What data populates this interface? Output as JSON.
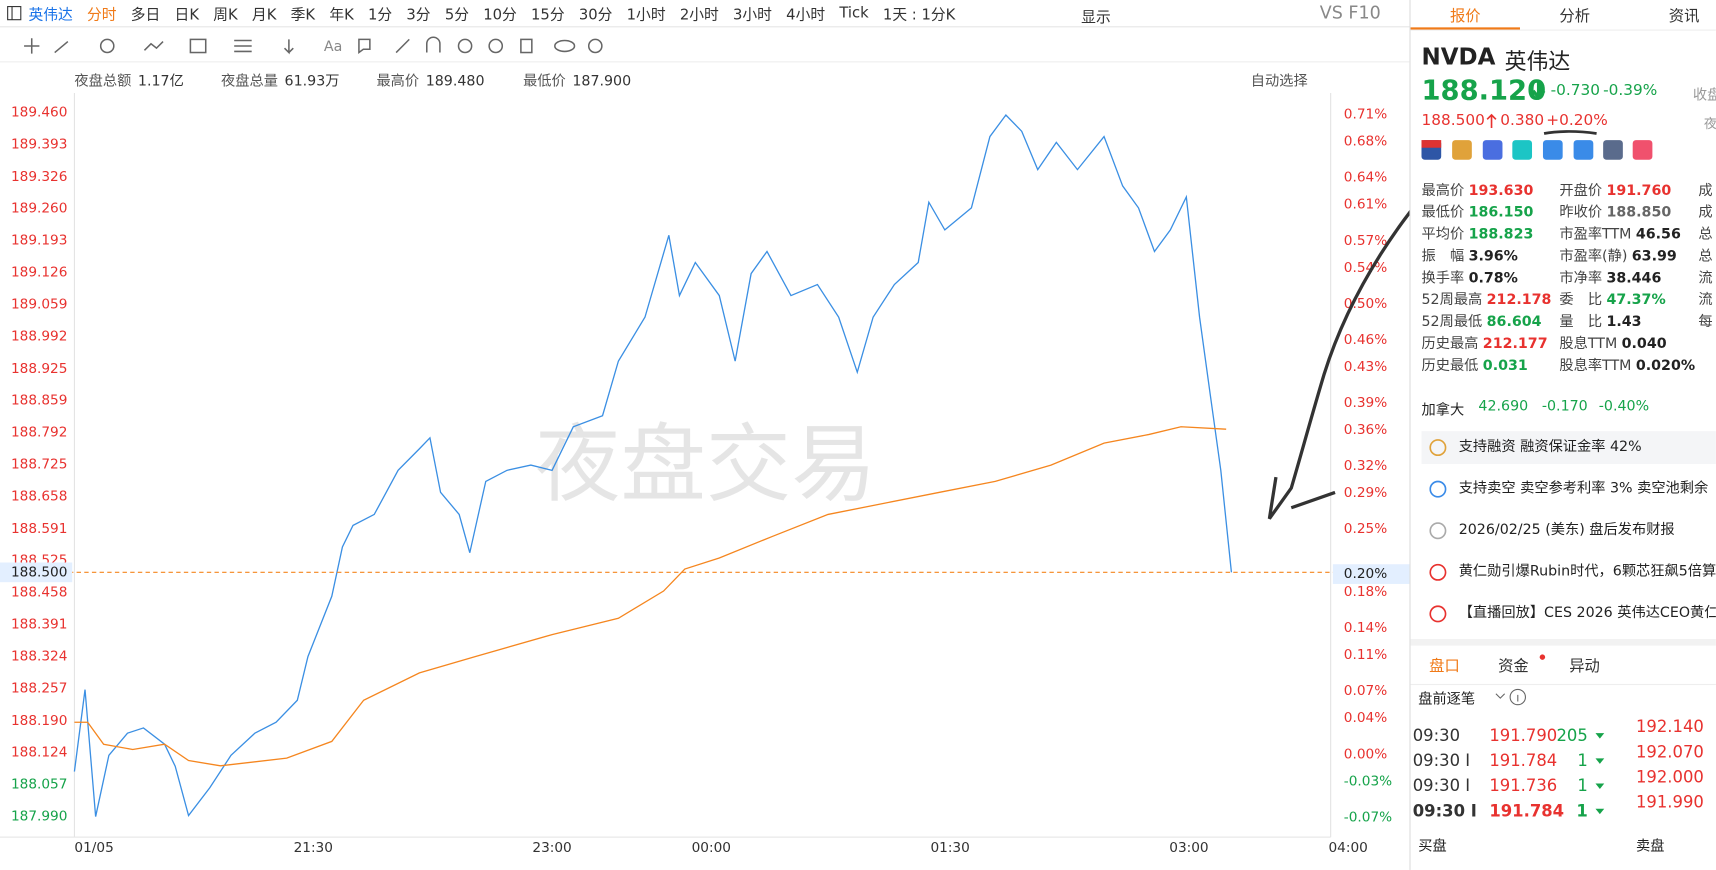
{
  "toolbar": {
    "tabs": [
      "英伟达",
      "分时",
      "多日",
      "日K",
      "周K",
      "月K",
      "季K",
      "年K",
      "1分",
      "3分",
      "5分",
      "10分",
      "15分",
      "30分",
      "1小时",
      "2小时",
      "3小时",
      "4小时",
      "Tick",
      "1天 : 1分K"
    ],
    "display": "显示",
    "f10": "VS F10"
  },
  "stats": [
    {
      "label": "夜盘总额",
      "value": "1.17亿"
    },
    {
      "label": "夜盘总量",
      "value": "61.93万"
    },
    {
      "label": "最高价",
      "value": "189.480"
    },
    {
      "label": "最低价",
      "value": "187.900"
    }
  ],
  "auto_select": "自动选择",
  "chart_data": {
    "type": "line",
    "watermark": "夜盘交易",
    "grid": false,
    "xlim": [
      "20:00",
      "04:00"
    ],
    "xticks": [
      {
        "value": "20:00",
        "label": "01/05"
      },
      "21:30",
      "23:00",
      "00:00",
      "01:30",
      "03:00",
      "04:00"
    ],
    "ylim": [
      187.947,
      189.501
    ],
    "yticks": [
      {
        "value": 189.46,
        "label": "189.460"
      },
      {
        "value": 189.393,
        "label": "189.393"
      },
      {
        "value": 189.326,
        "label": "189.326"
      },
      {
        "value": 189.26,
        "label": "189.260"
      },
      {
        "value": 189.193,
        "label": "189.193"
      },
      {
        "value": 189.126,
        "label": "189.126"
      },
      {
        "value": 189.059,
        "label": "189.059"
      },
      {
        "value": 188.992,
        "label": "188.992"
      },
      {
        "value": 188.925,
        "label": "188.925"
      },
      {
        "value": 188.859,
        "label": "188.859"
      },
      {
        "value": 188.792,
        "label": "188.792"
      },
      {
        "value": 188.725,
        "label": "188.725"
      },
      {
        "value": 188.658,
        "label": "188.658"
      },
      {
        "value": 188.591,
        "label": "188.591"
      },
      {
        "value": 188.525,
        "label": "188.525"
      },
      {
        "value": 188.458,
        "label": "188.458"
      },
      {
        "value": 188.391,
        "label": "188.391"
      },
      {
        "value": 188.324,
        "label": "188.324"
      },
      {
        "value": 188.257,
        "label": "188.257"
      },
      {
        "value": 188.19,
        "label": "188.190"
      },
      {
        "value": 188.124,
        "label": "188.124"
      },
      {
        "value": 188.057,
        "label": "188.057"
      },
      {
        "value": 187.99,
        "label": "187.990"
      }
    ],
    "y2lim": [
      -0.092,
      0.734
    ],
    "y2ticks": [
      {
        "value": 0.71,
        "label": "0.71%"
      },
      {
        "value": 0.68,
        "label": "0.68%"
      },
      {
        "value": 0.64,
        "label": "0.64%"
      },
      {
        "value": 0.61,
        "label": "0.61%"
      },
      {
        "value": 0.57,
        "label": "0.57%"
      },
      {
        "value": 0.54,
        "label": "0.54%"
      },
      {
        "value": 0.5,
        "label": "0.50%"
      },
      {
        "value": 0.46,
        "label": "0.46%"
      },
      {
        "value": 0.43,
        "label": "0.43%"
      },
      {
        "value": 0.39,
        "label": "0.39%"
      },
      {
        "value": 0.36,
        "label": "0.36%"
      },
      {
        "value": 0.32,
        "label": "0.32%"
      },
      {
        "value": 0.29,
        "label": "0.29%"
      },
      {
        "value": 0.25,
        "label": "0.25%"
      },
      {
        "value": 0.18,
        "label": "0.18%"
      },
      {
        "value": 0.14,
        "label": "0.14%"
      },
      {
        "value": 0.11,
        "label": "0.11%"
      },
      {
        "value": 0.07,
        "label": "0.07%"
      },
      {
        "value": 0.04,
        "label": "0.04%"
      },
      {
        "value": 0,
        "label": "0.00%"
      },
      {
        "value": -0.03,
        "label": "-0.03%"
      },
      {
        "value": -0.07,
        "label": "-0.07%"
      }
    ],
    "last": {
      "value": 188.5,
      "label": "188.500"
    },
    "last_pct": {
      "value": 0.2,
      "label": "0.20%"
    },
    "up_color": "#e8322f",
    "down_color": "#16a34a",
    "series": [
      {
        "color": "#3b8fe3",
        "x": [
          "20:00",
          "20:04",
          "20:08",
          "20:13",
          "20:20",
          "20:26",
          "20:34",
          "20:38",
          "20:43",
          "20:51",
          "20:59",
          "21:08",
          "21:16",
          "21:24",
          "21:28",
          "21:37",
          "21:41",
          "21:45",
          "21:53",
          "22:02",
          "22:10",
          "22:14",
          "22:18",
          "22:25",
          "22:29",
          "22:35",
          "22:43",
          "22:52",
          "23:00",
          "23:08",
          "23:19",
          "23:25",
          "23:35",
          "23:44",
          "23:48",
          "23:54",
          "00:03",
          "00:09",
          "00:15",
          "00:21",
          "00:30",
          "00:40",
          "00:48",
          "00:55",
          "01:01",
          "01:09",
          "01:18",
          "01:22",
          "01:28",
          "01:38",
          "01:45",
          "01:51",
          "01:57",
          "02:03",
          "02:10",
          "02:18",
          "02:28",
          "02:35",
          "02:41",
          "02:47",
          "02:53",
          "02:59",
          "03:04",
          "03:08",
          "03:12",
          "03:16"
        ],
        "values": [
          188.084,
          188.255,
          187.99,
          188.118,
          188.164,
          188.175,
          188.141,
          188.095,
          187.992,
          188.05,
          188.118,
          188.164,
          188.187,
          188.233,
          188.324,
          188.45,
          188.553,
          188.598,
          188.621,
          188.713,
          188.758,
          188.781,
          188.667,
          188.621,
          188.541,
          188.69,
          188.713,
          188.724,
          188.713,
          188.804,
          188.827,
          188.941,
          189.033,
          189.204,
          189.078,
          189.147,
          189.078,
          188.941,
          189.124,
          189.17,
          189.078,
          189.101,
          189.033,
          188.918,
          189.033,
          189.101,
          189.147,
          189.273,
          189.215,
          189.261,
          189.41,
          189.455,
          189.421,
          189.341,
          189.398,
          189.341,
          189.41,
          189.307,
          189.261,
          189.17,
          189.215,
          189.284,
          189.033,
          188.872,
          188.713,
          188.5
        ]
      },
      {
        "color": "#f5861f",
        "x": [
          "20:00",
          "20:05",
          "20:11",
          "20:22",
          "20:34",
          "20:43",
          "20:55",
          "21:20",
          "21:37",
          "21:49",
          "22:10",
          "22:31",
          "23:00",
          "23:25",
          "23:42",
          "23:50",
          "00:03",
          "00:23",
          "00:44",
          "01:05",
          "01:26",
          "01:47",
          "02:08",
          "02:28",
          "02:45",
          "02:57",
          "03:14"
        ],
        "values": [
          188.187,
          188.187,
          188.141,
          188.13,
          188.141,
          188.107,
          188.096,
          188.112,
          188.147,
          188.233,
          188.29,
          188.324,
          188.37,
          188.404,
          188.461,
          188.507,
          188.53,
          188.575,
          188.621,
          188.644,
          188.667,
          188.69,
          188.724,
          188.77,
          188.788,
          188.804,
          188.799
        ]
      }
    ]
  },
  "panel": {
    "tabs": [
      "报价",
      "分析",
      "资讯"
    ],
    "symbol": "NVDA",
    "name": "英伟达",
    "price": "188.120",
    "change": "-0.730",
    "change_pct": "-0.39%",
    "status": "收盘",
    "ext_price": "188.500",
    "ext_change": "0.380",
    "ext_pct": "+0.20%",
    "ext_status": "夜",
    "grid_left": [
      {
        "label": "最高价",
        "value": "193.630",
        "color": "#e8322f"
      },
      {
        "label": "最低价",
        "value": "186.150",
        "color": "#16a34a"
      },
      {
        "label": "平均价",
        "value": "188.823",
        "color": "#16a34a"
      },
      {
        "label": "振　幅",
        "value": "3.96%",
        "color": "#222"
      },
      {
        "label": "换手率",
        "value": "0.78%",
        "color": "#222"
      },
      {
        "label": "52周最高",
        "value": "212.178",
        "color": "#e8322f"
      },
      {
        "label": "52周最低",
        "value": "86.604",
        "color": "#16a34a"
      },
      {
        "label": "历史最高",
        "value": "212.177",
        "color": "#e8322f"
      },
      {
        "label": "历史最低",
        "value": "0.031",
        "color": "#16a34a"
      }
    ],
    "grid_right": [
      {
        "label": "开盘价",
        "value": "191.760",
        "color": "#e8322f"
      },
      {
        "label": "昨收价",
        "value": "188.850",
        "color": "#666"
      },
      {
        "label": "市盈率TTM",
        "value": "46.56",
        "color": "#222"
      },
      {
        "label": "市盈率(静)",
        "value": "63.99",
        "color": "#222"
      },
      {
        "label": "市净率",
        "value": "38.446",
        "color": "#222"
      },
      {
        "label": "委　比",
        "value": "47.37%",
        "color": "#16a34a"
      },
      {
        "label": "量　比",
        "value": "1.43",
        "color": "#222"
      },
      {
        "label": "股息TTM",
        "value": "0.040",
        "color": "#222"
      },
      {
        "label": "股息率TTM",
        "value": "0.020%",
        "color": "#222"
      }
    ],
    "grid_extra": [
      "成",
      "成",
      "总",
      "总",
      "流",
      "流",
      "每"
    ],
    "canada": {
      "label": "加拿大",
      "price": "42.690",
      "change": "-0.170",
      "pct": "-0.40%"
    },
    "notices": [
      "支持融资 融资保证金率 42%",
      "支持卖空 卖空参考利率 3% 卖空池剩余",
      "2026/02/25 (美东)  盘后发布财报",
      "黄仁勋引爆Rubin时代，6颗芯狂飙5倍算",
      "【直播回放】CES 2026 英伟达CEO黄仁"
    ],
    "book_tabs": [
      "盘口",
      "资金",
      "异动"
    ],
    "ticks_title": "盘前逐笔",
    "trades": [
      [
        "09:30",
        "191.790",
        "205"
      ],
      [
        "09:30 I",
        "191.784",
        "1"
      ],
      [
        "09:30 I",
        "191.736",
        "1"
      ],
      [
        "09:30 I",
        "191.784",
        "1"
      ]
    ],
    "asks": [
      "192.140",
      "192.070",
      "192.000",
      "191.990"
    ],
    "bid_label": "买盘",
    "ask_label": "卖盘"
  }
}
